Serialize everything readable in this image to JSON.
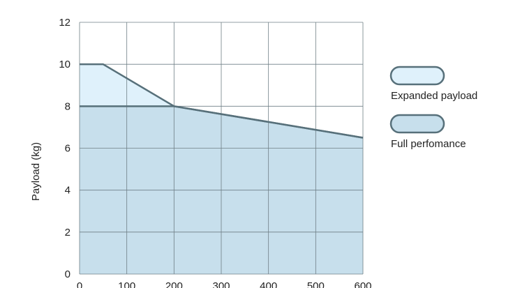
{
  "chart_data": {
    "type": "area",
    "xlabel": "",
    "ylabel": "Payload (kg)",
    "xlim": [
      0,
      600
    ],
    "ylim": [
      0,
      12
    ],
    "x_ticks": [
      0,
      100,
      200,
      300,
      400,
      500,
      600
    ],
    "y_ticks": [
      0,
      2,
      4,
      6,
      8,
      10,
      12
    ],
    "grid": true,
    "legend_position": "right",
    "series": [
      {
        "name": "Expanded payload",
        "color": "#dff1fb",
        "stroke": "#57707a",
        "points": [
          [
            0,
            10
          ],
          [
            50,
            10
          ],
          [
            200,
            8
          ],
          [
            600,
            6.5
          ]
        ]
      },
      {
        "name": "Full perfomance",
        "color": "#c7dfec",
        "stroke": "#57707a",
        "points": [
          [
            0,
            8
          ],
          [
            200,
            8
          ],
          [
            600,
            6.5
          ]
        ]
      }
    ]
  }
}
